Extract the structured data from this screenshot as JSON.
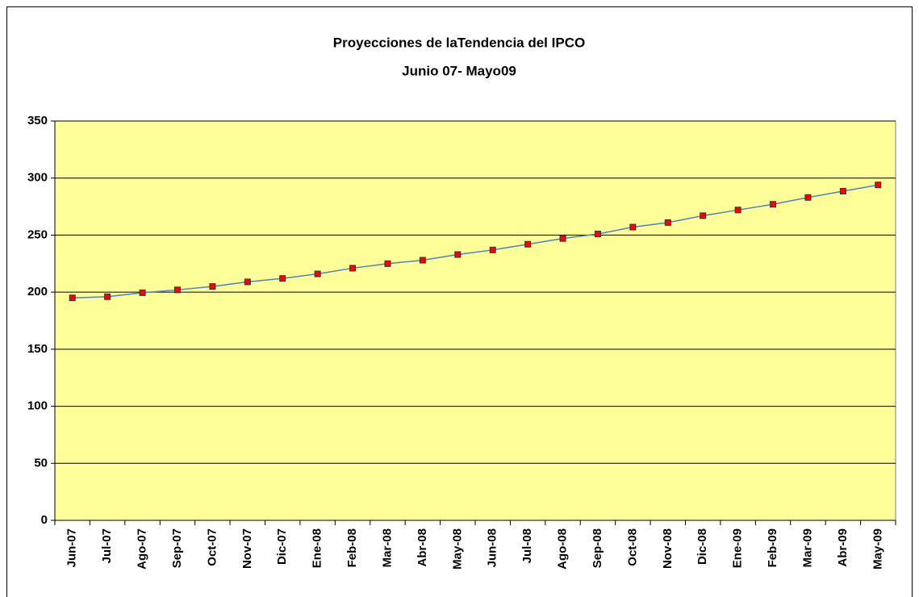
{
  "chart_data": {
    "type": "line",
    "title": "Proyecciones de laTendencia del IPCO",
    "subtitle": "Junio 07- Mayo09",
    "categories": [
      "Jun-07",
      "Jul-07",
      "Ago-07",
      "Sep-07",
      "Oct-07",
      "Nov-07",
      "Dic-07",
      "Ene-08",
      "Feb-08",
      "Mar-08",
      "Abr-08",
      "May-08",
      "Jun-08",
      "Jul-08",
      "Ago-08",
      "Sep-08",
      "Oct-08",
      "Nov-08",
      "Dic-08",
      "Ene-09",
      "Feb-09",
      "Mar-09",
      "Abr-09",
      "May-09"
    ],
    "values": [
      195,
      196,
      199.5,
      202,
      205,
      209,
      212,
      216,
      221,
      225,
      228,
      233,
      237,
      242,
      247,
      251,
      257,
      261,
      267,
      272,
      277,
      283,
      288.5,
      294
    ],
    "line_color": "#4f81bd",
    "marker_color": "#ff0000",
    "plot_background": "#ffff99",
    "ylim": [
      0,
      350
    ],
    "yticks": [
      0,
      50,
      100,
      150,
      200,
      250,
      300,
      350
    ],
    "grid": true
  }
}
